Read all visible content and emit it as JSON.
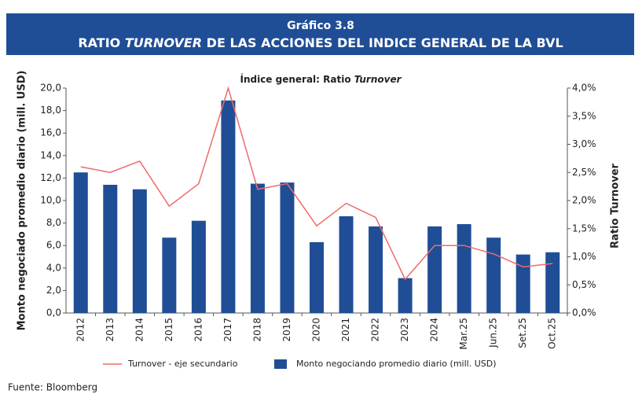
{
  "chart_data": {
    "type": "bar-line",
    "label": "Gráfico 3.8",
    "title": [
      "RATIO ",
      "TURNOVER",
      " DE LAS ACCIONES DEL INDICE GENERAL DE LA BVL"
    ],
    "subtitle": [
      "Índice general: Ratio ",
      "Turnover"
    ],
    "y_label": "Monto negociado promedio diario (mill. USD)",
    "y2_label": "Ratio Turnover",
    "source": "Fuente: Bloomberg",
    "categories": [
      "2012",
      "2013",
      "2014",
      "2015",
      "2016",
      "2017",
      "2018",
      "2019",
      "2020",
      "2021",
      "2022",
      "2023",
      "2024",
      "Mar.25",
      "Jun.25",
      "Set.25",
      "Oct.25"
    ],
    "series": [
      {
        "name": "Monto negociando promedio diario (mill. USD)",
        "type": "bar",
        "color": "#1f4e96",
        "values": [
          12.5,
          11.4,
          11.0,
          6.7,
          8.2,
          18.9,
          11.5,
          11.6,
          6.3,
          8.6,
          7.7,
          3.1,
          7.7,
          7.9,
          6.7,
          5.2,
          5.4
        ]
      },
      {
        "name": "Turnover - eje secundario",
        "type": "line",
        "axis": "y2",
        "color": "#f06a6a",
        "values": [
          2.6,
          2.5,
          2.7,
          1.9,
          2.3,
          4.0,
          2.2,
          2.3,
          1.55,
          1.95,
          1.7,
          0.6,
          1.2,
          1.2,
          1.05,
          0.82,
          0.88
        ]
      }
    ],
    "ylim": [
      0,
      20
    ],
    "yticks": [
      {
        "value": 0,
        "label": "0,0"
      },
      {
        "value": 2,
        "label": "2,0"
      },
      {
        "value": 4,
        "label": "4,0"
      },
      {
        "value": 6,
        "label": "6,0"
      },
      {
        "value": 8,
        "label": "8,0"
      },
      {
        "value": 10,
        "label": "10,0"
      },
      {
        "value": 12,
        "label": "12,0"
      },
      {
        "value": 14,
        "label": "14,0"
      },
      {
        "value": 16,
        "label": "16,0"
      },
      {
        "value": 18,
        "label": "18,0"
      },
      {
        "value": 20,
        "label": "20,0"
      }
    ],
    "y2lim": [
      0,
      4
    ],
    "y2ticks": [
      {
        "value": 0,
        "label": "0,0%"
      },
      {
        "value": 0.5,
        "label": "0,5%"
      },
      {
        "value": 1,
        "label": "1,0%"
      },
      {
        "value": 1.5,
        "label": "1,5%"
      },
      {
        "value": 2,
        "label": "2,0%"
      },
      {
        "value": 2.5,
        "label": "2,5%"
      },
      {
        "value": 3,
        "label": "3,0%"
      },
      {
        "value": 3.5,
        "label": "3,5%"
      },
      {
        "value": 4,
        "label": "4,0%"
      }
    ]
  }
}
